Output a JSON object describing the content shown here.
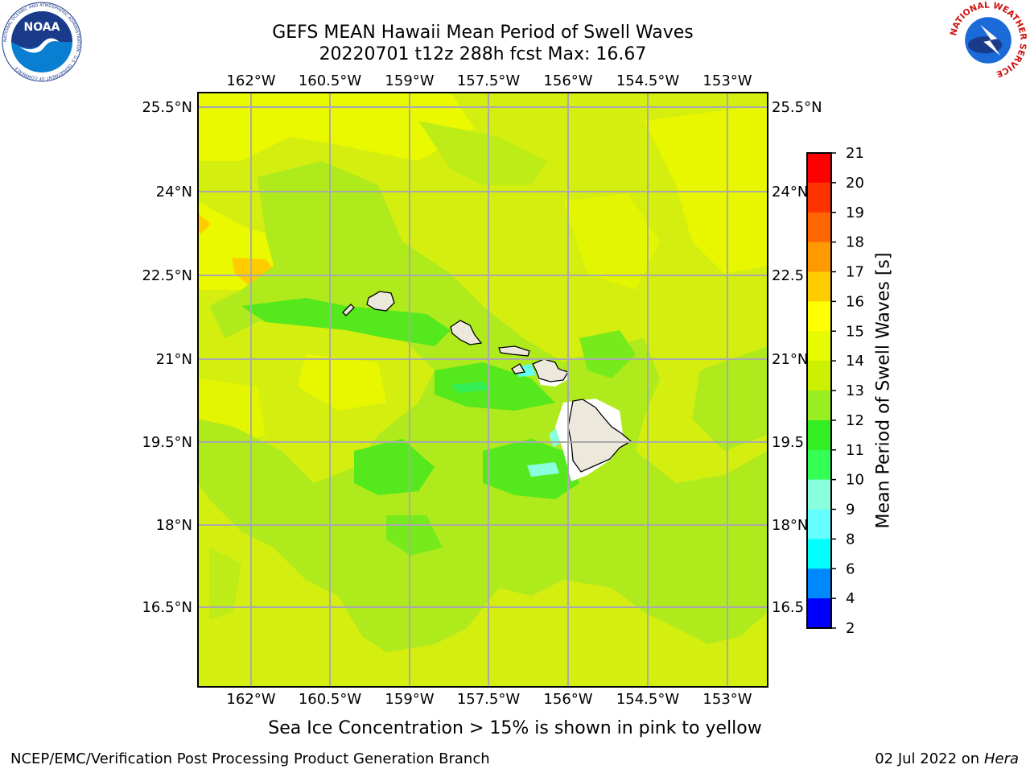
{
  "title_line1": "GEFS MEAN Hawaii Mean Period of Swell Waves",
  "title_line2": "20220701 t12z 288h fcst   Max: 16.67",
  "subtitle": "Sea Ice Concentration > 15% is shown in pink to yellow",
  "credit": "NCEP/EMC/Verification Post Processing Product Generation Branch",
  "date_text": "02 Jul 2022 on ",
  "date_host": "Hera",
  "noaa_logo": {
    "text": "NOAA",
    "ring": "NATIONAL OCEANIC AND ATMOSPHERIC ADMINISTRATION · U.S. DEPARTMENT OF COMMERCE"
  },
  "nws_logo": {
    "ring": "NATIONAL WEATHER SERVICE"
  },
  "map": {
    "lon_labels_top": [
      "162°W",
      "160.5°W",
      "159°W",
      "157.5°W",
      "156°W",
      "154.5°W",
      "153°W"
    ],
    "lon_labels_bottom": [
      "162°W",
      "160.5°W",
      "159°W",
      "157.5°W",
      "156°W",
      "154.5°W",
      "153°W"
    ],
    "lat_labels_left": [
      "25.5°N",
      "24°N",
      "22.5°N",
      "21°N",
      "19.5°N",
      "18°N",
      "16.5°N"
    ],
    "lat_labels_right": [
      "25.5°N",
      "24°N",
      "22.5",
      "21°N",
      "19.5",
      "18°N",
      "16.5"
    ],
    "background_color": "#d4ee10",
    "grid_color": "#aaaaaa",
    "land_color": "#ece9dc"
  },
  "colorbar": {
    "label": "Mean Period of Swell Waves [s]",
    "ticks": [
      "21",
      "20",
      "19",
      "18",
      "17",
      "16",
      "15",
      "14",
      "13",
      "12",
      "11",
      "10",
      "9",
      "8",
      "6",
      "4",
      "2"
    ],
    "colors_top_to_bottom": [
      "#ff0000",
      "#ff3300",
      "#ff6600",
      "#ff9900",
      "#ffcc00",
      "#ffff00",
      "#e8fa00",
      "#ccf000",
      "#99ee22",
      "#33ee22",
      "#33ff55",
      "#88ffdd",
      "#66ffff",
      "#00ffff",
      "#0088ff",
      "#0000ff"
    ]
  }
}
